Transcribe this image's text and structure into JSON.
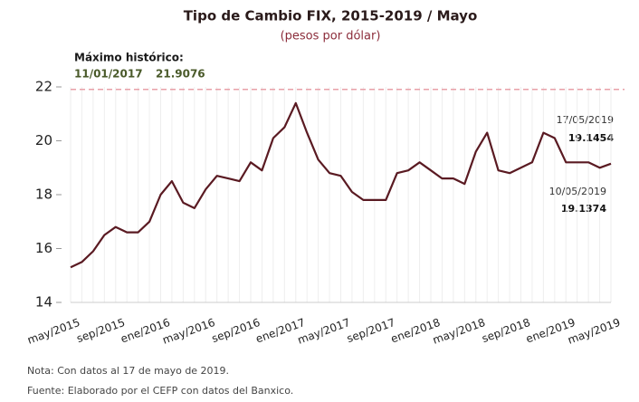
{
  "chart_data": {
    "type": "line",
    "title": "Tipo de Cambio FIX, 2015-2019 / Mayo",
    "subtitle": "(pesos por dólar)",
    "categories": [
      "may/2015",
      null,
      null,
      null,
      "sep/2015",
      null,
      null,
      null,
      "ene/2016",
      null,
      null,
      null,
      "may/2016",
      null,
      null,
      null,
      "sep/2016",
      null,
      null,
      null,
      "ene/2017",
      null,
      null,
      null,
      "may/2017",
      null,
      null,
      null,
      "sep/2017",
      null,
      null,
      null,
      "ene/2018",
      null,
      null,
      null,
      "may/2018",
      null,
      null,
      null,
      "sep/2018",
      null,
      null,
      null,
      "ene/2019",
      null,
      null,
      null,
      "may/2019"
    ],
    "values": [
      15.3,
      15.5,
      15.9,
      16.5,
      16.8,
      16.6,
      16.6,
      17.0,
      18.0,
      18.5,
      17.7,
      17.5,
      18.2,
      18.7,
      18.6,
      18.5,
      19.2,
      18.9,
      20.1,
      20.5,
      21.4,
      20.3,
      19.3,
      18.8,
      18.7,
      18.1,
      17.8,
      17.8,
      17.8,
      18.8,
      18.9,
      19.2,
      18.9,
      18.6,
      18.6,
      18.4,
      19.6,
      20.3,
      18.9,
      18.8,
      19.0,
      19.2,
      20.3,
      20.1,
      19.2,
      19.2,
      19.2,
      19.0,
      19.15
    ],
    "color": "#5a1a22",
    "ylim": [
      14,
      22
    ],
    "yticks": [
      14,
      16,
      18,
      20,
      22
    ],
    "grid": true,
    "max_annotation": {
      "label": "Máximo histórico:",
      "date": "11/01/2017",
      "value": 21.9076
    },
    "point_annotations": [
      {
        "date": "17/05/2019",
        "value": 19.1454
      },
      {
        "date": "10/05/2019",
        "value": 19.1374
      }
    ],
    "notes": [
      "Nota: Con datos al 17 de mayo de 2019.",
      "Fuente: Elaborado por el CEFP con datos del Banxico."
    ]
  }
}
